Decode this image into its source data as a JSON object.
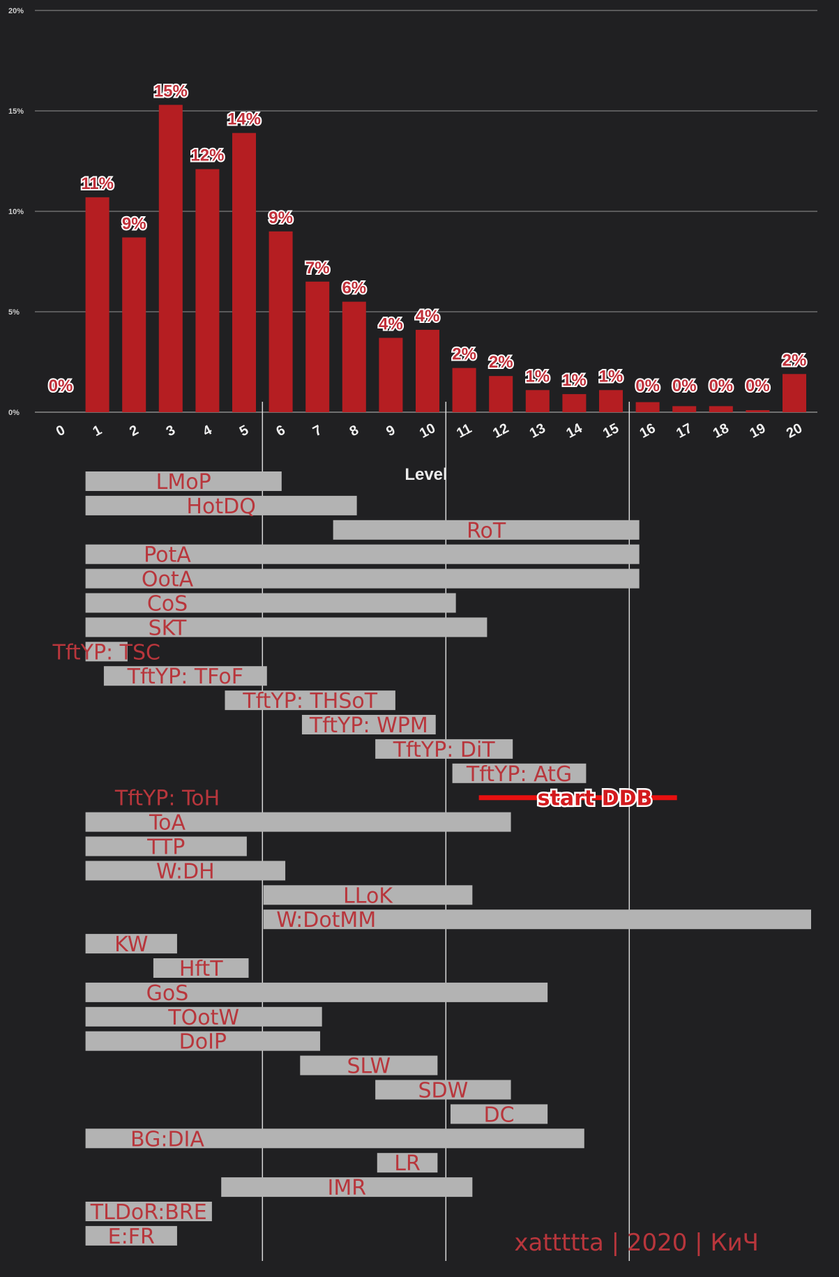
{
  "chart_data": {
    "type": "bar",
    "title": "",
    "xlabel": "Level",
    "ylabel": "",
    "ylim": [
      0,
      20
    ],
    "y_ticks": [
      "0%",
      "5%",
      "10%",
      "15%",
      "20%"
    ],
    "grid": true,
    "categories": [
      "0",
      "1",
      "2",
      "3",
      "4",
      "5",
      "6",
      "7",
      "8",
      "9",
      "10",
      "11",
      "12",
      "13",
      "14",
      "15",
      "16",
      "17",
      "18",
      "19",
      "20"
    ],
    "values": [
      0,
      10.7,
      8.7,
      15.3,
      12.1,
      13.9,
      9.0,
      6.5,
      5.5,
      3.7,
      4.1,
      2.2,
      1.8,
      1.1,
      0.9,
      1.1,
      0.5,
      0.3,
      0.3,
      0.1,
      1.9
    ],
    "value_labels": [
      "0%",
      "11%",
      "9%",
      "15%",
      "12%",
      "14%",
      "9%",
      "7%",
      "6%",
      "4%",
      "4%",
      "2%",
      "2%",
      "1%",
      "1%",
      "1%",
      "0%",
      "0%",
      "0%",
      "0%",
      "2%"
    ],
    "bar_color": "#b51e22"
  },
  "adventure_ranges": {
    "axis": "Level",
    "marker_levels": [
      5.5,
      10.5,
      15.5
    ],
    "modules": [
      {
        "label": "LMoP",
        "start": 1,
        "end": 5.7
      },
      {
        "label": "HotDQ",
        "start": 1,
        "end": 7.75
      },
      {
        "label": "RoT",
        "start": 7.75,
        "end": 15.45
      },
      {
        "label": "PotA",
        "start": 1,
        "end": 15.45
      },
      {
        "label": "OotA",
        "start": 1,
        "end": 15.45
      },
      {
        "label": "CoS",
        "start": 1,
        "end": 10.45
      },
      {
        "label": "SKT",
        "start": 1,
        "end": 11.3
      },
      {
        "label": "TftYP: TSC",
        "start": 1,
        "end": 1.5
      },
      {
        "label": "TftYP: TFoF",
        "start": 1.5,
        "end": 5.3
      },
      {
        "label": "TftYP: THSoT",
        "start": 4.8,
        "end": 8.8
      },
      {
        "label": "TftYP: WPM",
        "start": 6.9,
        "end": 9.9
      },
      {
        "label": "TftYP: DiT",
        "start": 8.9,
        "end": 12.0
      },
      {
        "label": "TftYP: AtG",
        "start": 11.0,
        "end": 14.0
      },
      {
        "label": "TftYP: ToH",
        "start": null,
        "end": null
      },
      {
        "label": "ToA",
        "start": 1,
        "end": 11.95
      },
      {
        "label": "TTP",
        "start": 1,
        "end": 4.75
      },
      {
        "label": "W:DH",
        "start": 1,
        "end": 5.8
      },
      {
        "label": "LLoK",
        "start": 5.85,
        "end": 10.9
      },
      {
        "label": "W:DotMM",
        "start": 5.85,
        "end": 20.9
      },
      {
        "label": "KW",
        "start": 1,
        "end": 2.85
      },
      {
        "label": "HftT",
        "start": 2.85,
        "end": 4.8
      },
      {
        "label": "GoS",
        "start": 1,
        "end": 12.95
      },
      {
        "label": "TOotW",
        "start": 1,
        "end": 6.8
      },
      {
        "label": "DoIP",
        "start": 1,
        "end": 6.75
      },
      {
        "label": "SLW",
        "start": 6.85,
        "end": 9.95
      },
      {
        "label": "SDW",
        "start": 8.9,
        "end": 11.95
      },
      {
        "label": "DC",
        "start": 10.95,
        "end": 12.95
      },
      {
        "label": "BG:DIA",
        "start": 1,
        "end": 13.95
      },
      {
        "label": "LR",
        "start": 8.95,
        "end": 9.95
      },
      {
        "label": "IMR",
        "start": 4.7,
        "end": 10.9
      },
      {
        "label": "TLDoR:BRE",
        "start": 1,
        "end": 3.8
      },
      {
        "label": "E:FR",
        "start": 1,
        "end": 2.85
      }
    ],
    "ddb_marker": {
      "label": "start DDB",
      "start": 11.4,
      "end": 16.8,
      "color": "#e81010"
    },
    "range_bar_color": "#b3b3b3"
  },
  "credit": "xattttta  | 2020  | КиЧ"
}
